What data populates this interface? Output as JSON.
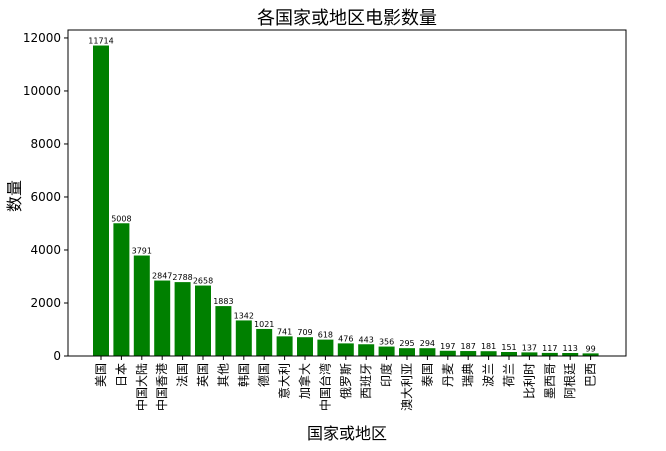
{
  "chart_data": {
    "type": "bar",
    "title": "各国家或地区电影数量",
    "xlabel": "国家或地区",
    "ylabel": "数量",
    "categories": [
      "美国",
      "日本",
      "中国大陆",
      "中国香港",
      "法国",
      "英国",
      "其他",
      "韩国",
      "德国",
      "意大利",
      "加拿大",
      "中国台湾",
      "俄罗斯",
      "西班牙",
      "印度",
      "澳大利亚",
      "泰国",
      "丹麦",
      "瑞典",
      "波兰",
      "荷兰",
      "比利时",
      "墨西哥",
      "阿根廷",
      "巴西"
    ],
    "values": [
      11714,
      5008,
      3791,
      2847,
      2788,
      2658,
      1883,
      1342,
      1021,
      741,
      709,
      618,
      476,
      443,
      356,
      295,
      294,
      197,
      187,
      181,
      151,
      137,
      117,
      113,
      99
    ],
    "value_labels": [
      "11714",
      "5008",
      "3791",
      "2847",
      "2788",
      "2658",
      "1883",
      "1342",
      "1021",
      "741",
      "709",
      "618",
      "476",
      "443",
      "356",
      "295",
      "294",
      "197",
      "187",
      "181",
      "151",
      "137",
      "117",
      "113",
      "99"
    ],
    "ylim": [
      0,
      12300
    ],
    "yticks": [
      0,
      2000,
      4000,
      6000,
      8000,
      10000,
      12000
    ],
    "ytick_labels": [
      "0",
      "2000",
      "4000",
      "6000",
      "8000",
      "10000",
      "12000"
    ],
    "bar_color": "#008000",
    "grid": false,
    "legend": "none"
  }
}
